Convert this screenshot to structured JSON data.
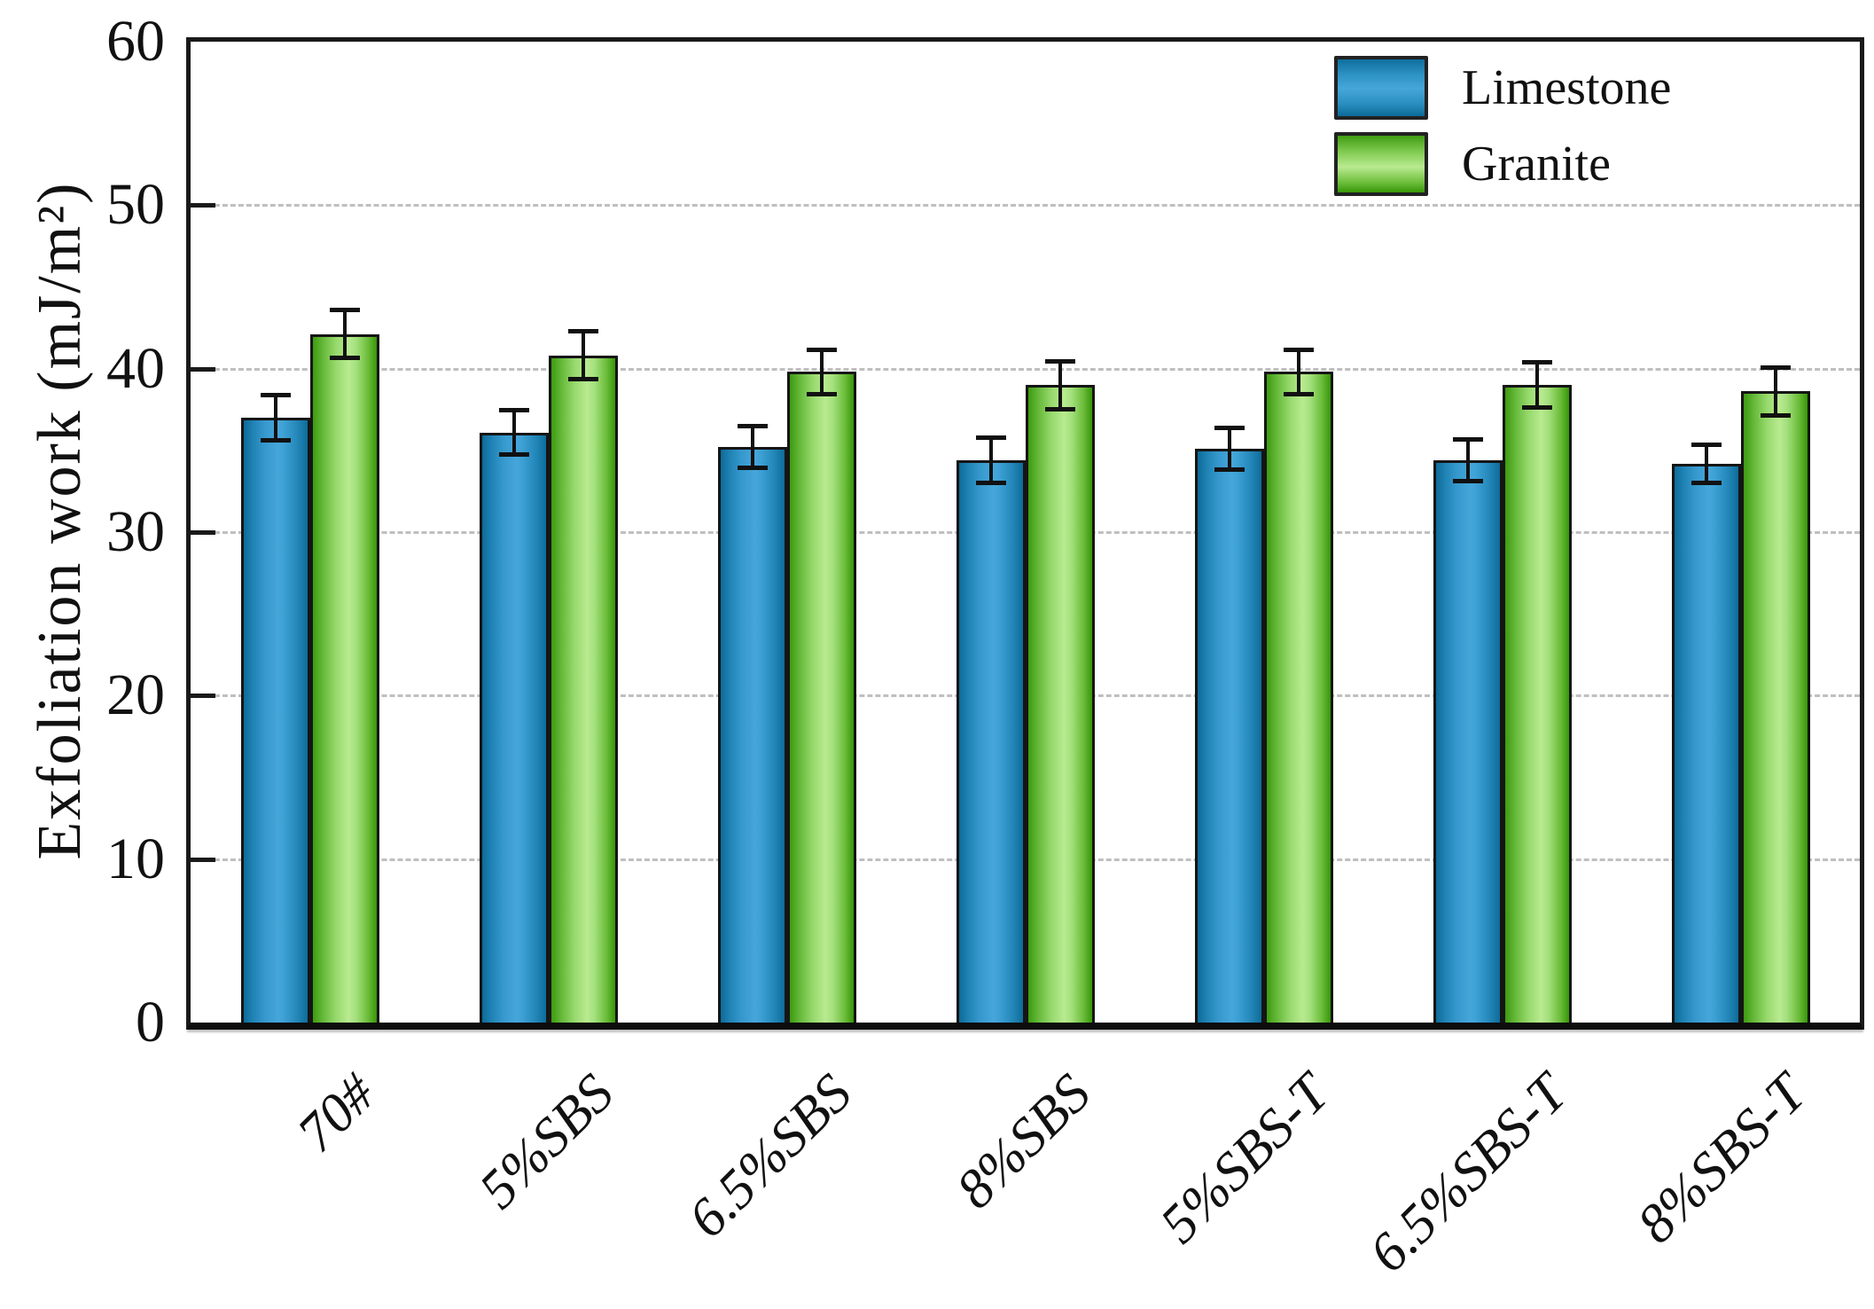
{
  "figure": {
    "background": "#ffffff",
    "frame_color": "#1a1a1a"
  },
  "chart_data": {
    "type": "bar",
    "title": "",
    "xlabel": "",
    "ylabel": "Exfoliation work (mJ/m²)",
    "ylim": [
      0,
      60
    ],
    "yticks": [
      0,
      10,
      20,
      30,
      40,
      50,
      60
    ],
    "grid": "horizontal dashed gridlines at major y ticks",
    "legend_position": "top-right inside plot",
    "categories": [
      "70#",
      "5%SBS",
      "6.5%SBS",
      "8%SBS",
      "5%SBS-T",
      "6.5%SBS-T",
      "8%SBS-T"
    ],
    "series": [
      {
        "name": "Limestone",
        "color": "#2f95c8",
        "values": [
          37.0,
          36.1,
          35.2,
          34.4,
          35.1,
          34.4,
          34.2
        ],
        "errors": [
          1.5,
          1.5,
          1.4,
          1.5,
          1.4,
          1.4,
          1.3
        ]
      },
      {
        "name": "Granite",
        "color": "#8ed05f",
        "values": [
          42.1,
          40.8,
          39.8,
          39.0,
          39.8,
          39.0,
          38.6
        ],
        "errors": [
          1.6,
          1.6,
          1.5,
          1.6,
          1.5,
          1.5,
          1.6
        ]
      }
    ],
    "error_bar_color": "#111111",
    "gridline_color": "#bfbfbf"
  }
}
